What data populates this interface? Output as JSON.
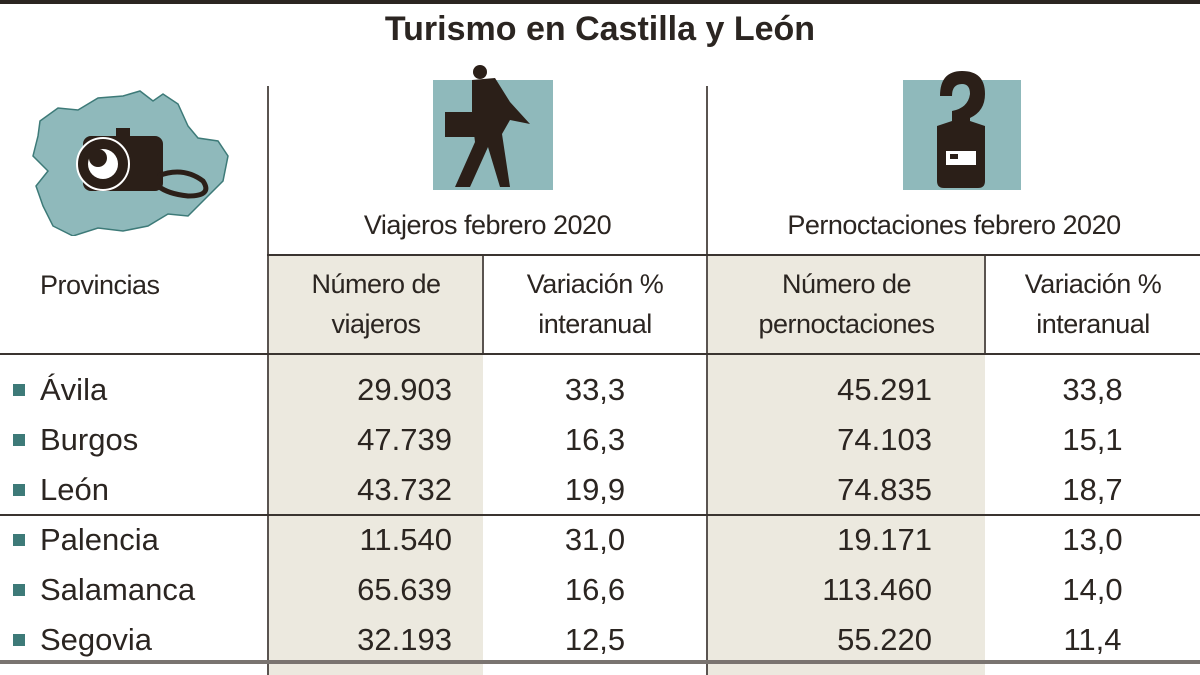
{
  "title": "Turismo en Castilla y León",
  "colors": {
    "accent_teal": "#8fb9bb",
    "bullet": "#3d7a78",
    "shade": "#ece9df",
    "text": "#2b2521"
  },
  "icons": [
    "castilla-leon-map-camera-icon",
    "traveler-with-briefcase-icon",
    "hotel-door-hanger-icon"
  ],
  "chart_data": {
    "type": "table",
    "title": "Turismo en Castilla y León",
    "row_header": "Provincias",
    "groups": [
      {
        "label": "Viajeros febrero 2020",
        "columns": [
          "Número de viajeros",
          "Variación % interanual"
        ]
      },
      {
        "label": "Pernoctaciones febrero 2020",
        "columns": [
          "Número de pernoctaciones",
          "Variación % interanual"
        ]
      }
    ],
    "header_lines": [
      [
        "Número de",
        "viajeros"
      ],
      [
        "Variación %",
        "interanual"
      ],
      [
        "Número de",
        "pernoctaciones"
      ],
      [
        "Variación %",
        "interanual"
      ]
    ],
    "rows": [
      {
        "province": "Ávila",
        "viajeros": "29.903",
        "var_viajeros": "33,3",
        "pernoctaciones": "45.291",
        "var_pernoctaciones": "33,8"
      },
      {
        "province": "Burgos",
        "viajeros": "47.739",
        "var_viajeros": "16,3",
        "pernoctaciones": "74.103",
        "var_pernoctaciones": "15,1"
      },
      {
        "province": "León",
        "viajeros": "43.732",
        "var_viajeros": "19,9",
        "pernoctaciones": "74.835",
        "var_pernoctaciones": "18,7"
      },
      {
        "province": "Palencia",
        "viajeros": "11.540",
        "var_viajeros": "31,0",
        "pernoctaciones": "19.171",
        "var_pernoctaciones": "13,0"
      },
      {
        "province": "Salamanca",
        "viajeros": "65.639",
        "var_viajeros": "16,6",
        "pernoctaciones": "113.460",
        "var_pernoctaciones": "14,0"
      },
      {
        "province": "Segovia",
        "viajeros": "32.193",
        "var_viajeros": "12,5",
        "pernoctaciones": "55.220",
        "var_pernoctaciones": "11,4"
      }
    ]
  }
}
